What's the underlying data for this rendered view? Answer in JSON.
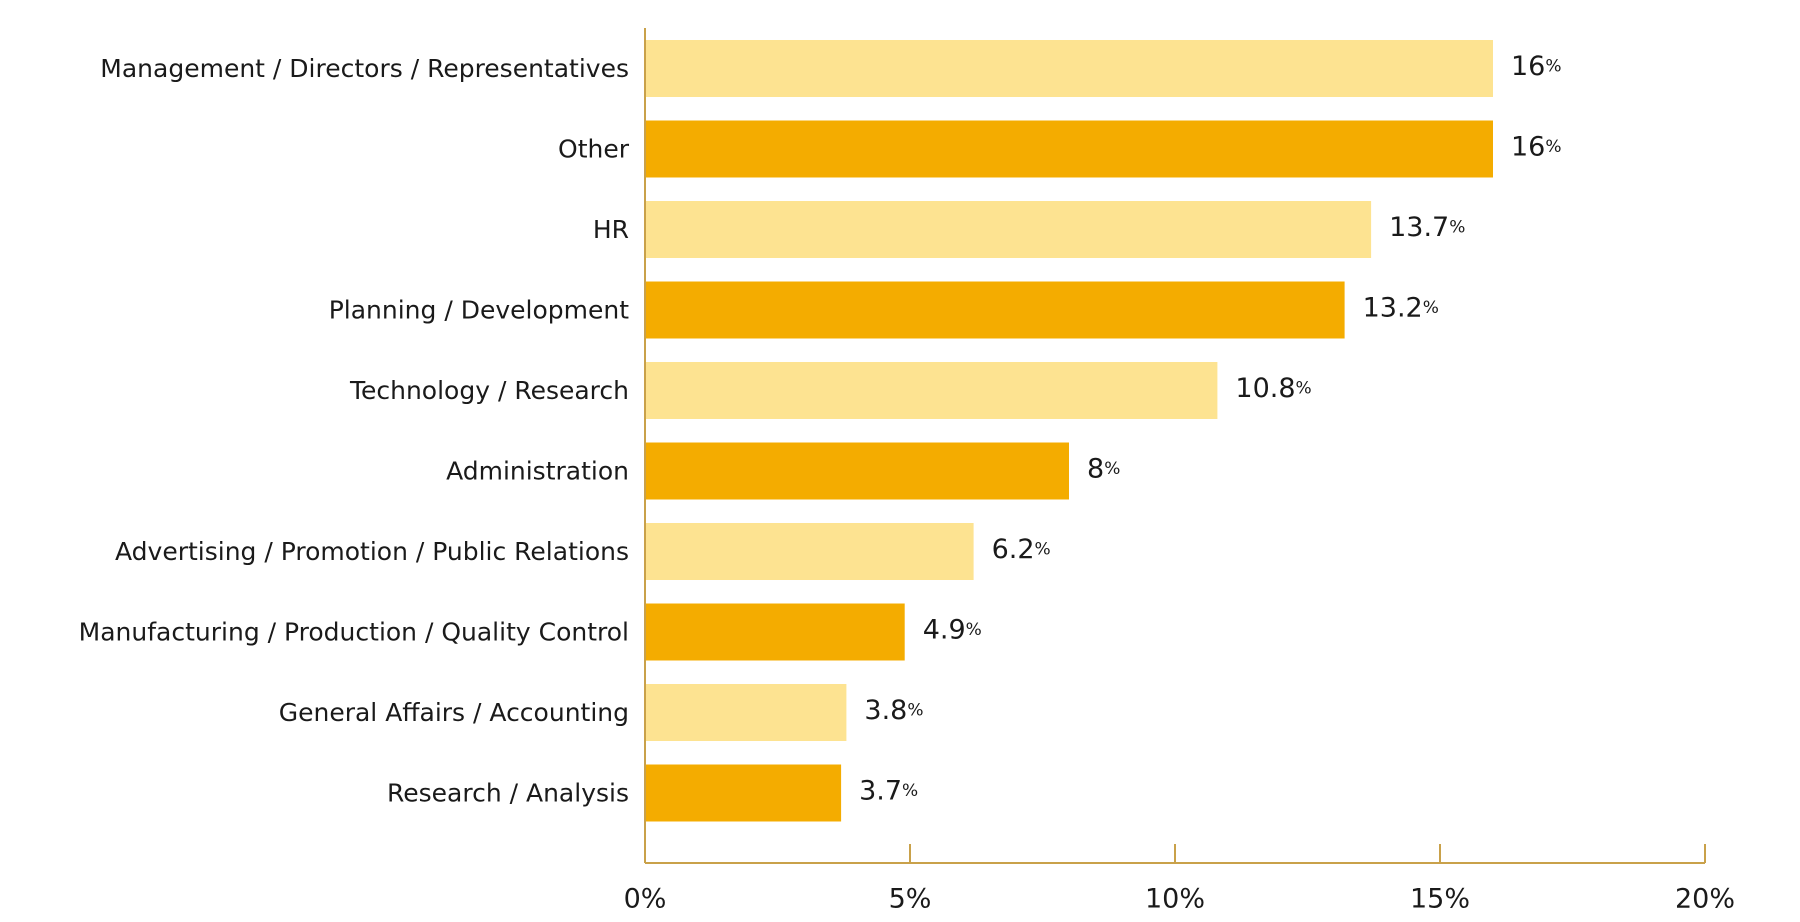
{
  "chart_data": {
    "type": "bar",
    "orientation": "horizontal",
    "categories": [
      "Management / Directors / Representatives",
      "Other",
      "HR",
      "Planning / Development",
      "Technology / Research",
      "Administration",
      "Advertising / Promotion / Public Relations",
      "Manufacturing / Production / Quality Control",
      "General Affairs / Accounting",
      "Research / Analysis"
    ],
    "values": [
      16,
      16,
      13.7,
      13.2,
      10.8,
      8,
      6.2,
      4.9,
      3.8,
      3.7
    ],
    "value_labels": [
      "16",
      "16",
      "13.7",
      "13.2",
      "10.8",
      "8",
      "6.2",
      "4.9",
      "3.8",
      "3.7"
    ],
    "value_unit": "%",
    "bar_colors": [
      "#FDE391",
      "#F4AC00"
    ],
    "axis_color": "#C9A14A",
    "xlim": [
      0,
      20
    ],
    "xticks": [
      0,
      5,
      10,
      15,
      20
    ],
    "xtick_labels": [
      "0%",
      "5%",
      "10%",
      "15%",
      "20%"
    ],
    "grid": false,
    "legend": "none",
    "title": "",
    "xlabel": "",
    "ylabel": ""
  }
}
